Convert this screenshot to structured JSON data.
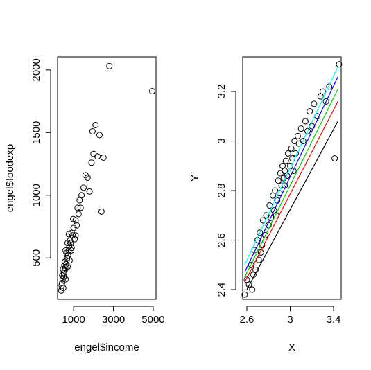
{
  "chart_data": [
    {
      "type": "scatter",
      "xlabel": "engel$income",
      "ylabel": "engel$foodexp",
      "x": [
        380,
        400,
        420,
        450,
        480,
        500,
        520,
        550,
        580,
        600,
        620,
        650,
        680,
        700,
        720,
        750,
        780,
        800,
        820,
        850,
        880,
        900,
        950,
        1000,
        1050,
        1100,
        1150,
        1200,
        1250,
        1300,
        1400,
        1500,
        1600,
        1700,
        1800,
        1900,
        1950,
        2000,
        2100,
        2200,
        2300,
        2400,
        2500,
        2800,
        4950,
        600,
        700,
        900,
        1100,
        430,
        470,
        530,
        560,
        640,
        760,
        980,
        1350
      ],
      "values": [
        240,
        280,
        300,
        330,
        260,
        350,
        380,
        400,
        420,
        330,
        450,
        480,
        500,
        430,
        520,
        560,
        600,
        480,
        640,
        620,
        560,
        700,
        680,
        740,
        650,
        800,
        760,
        900,
        850,
        960,
        1000,
        1060,
        1160,
        1140,
        1030,
        1260,
        1510,
        1330,
        1560,
        1310,
        1480,
        870,
        1300,
        2030,
        1830,
        560,
        620,
        580,
        680,
        360,
        410,
        440,
        470,
        540,
        690,
        810,
        900
      ],
      "xlim": [
        194,
        5140
      ],
      "ylim": [
        170,
        2104
      ],
      "xticks": [
        1000,
        3000,
        5000
      ],
      "yticks": [
        500,
        1000,
        1500,
        2000
      ]
    },
    {
      "type": "scatter",
      "xlabel": "X",
      "ylabel": "Y",
      "x": [
        2.58,
        2.6,
        2.62,
        2.64,
        2.65,
        2.67,
        2.68,
        2.7,
        2.71,
        2.72,
        2.74,
        2.75,
        2.77,
        2.78,
        2.8,
        2.81,
        2.82,
        2.84,
        2.85,
        2.86,
        2.88,
        2.89,
        2.9,
        2.91,
        2.92,
        2.93,
        2.94,
        2.95,
        2.96,
        2.97,
        2.98,
        3.0,
        3.01,
        3.02,
        3.04,
        3.05,
        3.07,
        3.08,
        3.1,
        3.12,
        3.14,
        3.16,
        3.18,
        3.2,
        3.22,
        3.25,
        3.28,
        3.3,
        3.33,
        3.36,
        3.41,
        3.45,
        2.66,
        2.73,
        2.87,
        2.95,
        3.03
      ],
      "values": [
        2.38,
        2.44,
        2.42,
        2.5,
        2.4,
        2.56,
        2.48,
        2.6,
        2.52,
        2.63,
        2.58,
        2.68,
        2.62,
        2.7,
        2.66,
        2.74,
        2.69,
        2.78,
        2.72,
        2.8,
        2.76,
        2.84,
        2.79,
        2.87,
        2.82,
        2.9,
        2.85,
        2.88,
        2.92,
        2.86,
        2.95,
        2.9,
        2.97,
        2.93,
        3.0,
        2.95,
        3.02,
        2.99,
        3.05,
        3.0,
        3.08,
        3.04,
        3.12,
        3.06,
        3.15,
        3.1,
        3.18,
        3.2,
        3.16,
        3.22,
        2.93,
        3.31,
        2.46,
        2.55,
        2.7,
        2.82,
        2.88
      ],
      "lines": [
        {
          "color": "#000000",
          "x": [
            2.6,
            3.44
          ],
          "values": [
            2.4,
            3.08
          ]
        },
        {
          "color": "#ff0000",
          "x": [
            2.58,
            3.44
          ],
          "values": [
            2.43,
            3.16
          ]
        },
        {
          "color": "#00cd00",
          "x": [
            2.58,
            3.44
          ],
          "values": [
            2.45,
            3.21
          ]
        },
        {
          "color": "#0000ff",
          "x": [
            2.58,
            3.44
          ],
          "values": [
            2.47,
            3.26
          ]
        },
        {
          "color": "#00ffff",
          "x": [
            2.58,
            3.44
          ],
          "values": [
            2.5,
            3.3
          ]
        }
      ],
      "xlim": [
        2.562,
        3.47
      ],
      "ylim": [
        2.361,
        3.34
      ],
      "xticks": [
        2.6,
        3.0,
        3.4
      ],
      "yticks": [
        2.4,
        2.6,
        2.8,
        3.0,
        3.2
      ]
    }
  ]
}
